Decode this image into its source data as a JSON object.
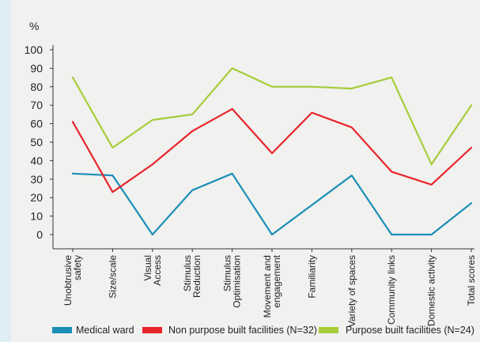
{
  "chart_data": {
    "type": "line",
    "ylabel": "%",
    "ylim": [
      0,
      100
    ],
    "yticks": [
      "0",
      "10",
      "20",
      "30",
      "40",
      "50",
      "60",
      "70",
      "80",
      "90",
      "100"
    ],
    "categories": [
      "Unobtrusive safety",
      "Size/scale",
      "Visual Access",
      "Stimulus Reduction",
      "Stimulus Optimisation",
      "Movement and engagement",
      "Familiarity",
      "Variety of spaces",
      "Community links",
      "Domestic activity",
      "Total scores"
    ],
    "category_lines": [
      [
        "Unobtrusive",
        "safety"
      ],
      [
        "Size/scale"
      ],
      [
        "Visual",
        "Access"
      ],
      [
        "Stimulus",
        "Reduction"
      ],
      [
        "Stimulus",
        "Optimisation"
      ],
      [
        "Movement and",
        "engagement"
      ],
      [
        "Familiarity"
      ],
      [
        "Variety of spaces"
      ],
      [
        "Community links"
      ],
      [
        "Domestic activity"
      ],
      [
        "Total scores"
      ]
    ],
    "series": [
      {
        "name": "Medical ward",
        "color": "#1a8fb5",
        "values": [
          33,
          32,
          0,
          24,
          33,
          0,
          16,
          32,
          0,
          0,
          17
        ]
      },
      {
        "name": "Non purpose built facilities (N=32)",
        "color": "#e8252a",
        "values": [
          61,
          23,
          38,
          56,
          68,
          44,
          66,
          58,
          34,
          27,
          47
        ]
      },
      {
        "name": "Purpose built facilities (N=24)",
        "color": "#a5cd39",
        "values": [
          85,
          47,
          62,
          65,
          90,
          80,
          80,
          79,
          85,
          38,
          70
        ]
      }
    ],
    "legend": "bottom",
    "grid": false
  }
}
